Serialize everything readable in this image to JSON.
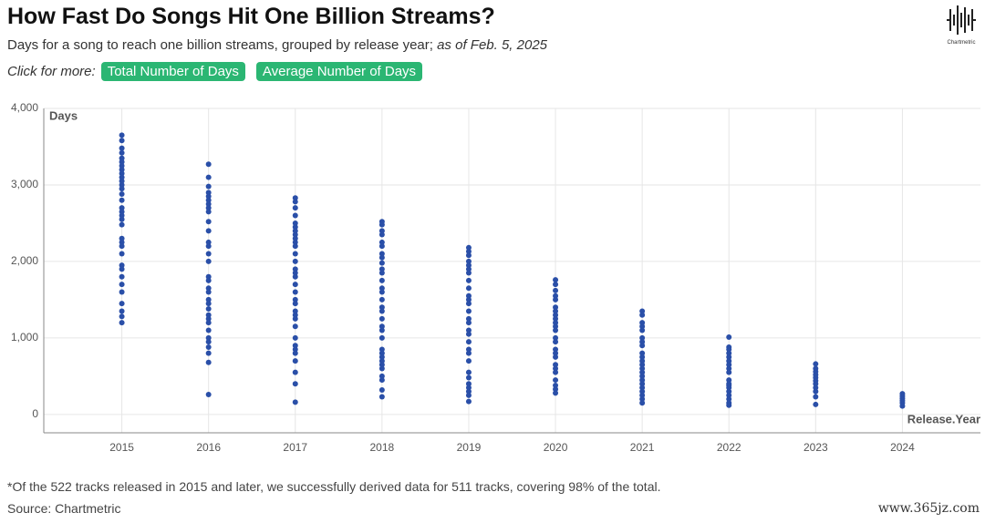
{
  "header": {
    "title": "How Fast Do Songs Hit One Billion Streams?",
    "subtitle": "Days for a song to reach one billion streams, grouped by release year;",
    "subtitle_note": "as of Feb. 5, 2025",
    "more_label": "Click for more:",
    "buttons": [
      "Total Number of Days",
      "Average Number of Days"
    ],
    "logo": "Chartmetric"
  },
  "chart_data": {
    "type": "scatter",
    "ylabel": "Days",
    "xlabel": "Release.Year",
    "color": "#2a4fa8",
    "grid": true,
    "x": [
      2015,
      2016,
      2017,
      2018,
      2019,
      2020,
      2021,
      2022,
      2023,
      2024
    ],
    "values": [
      [
        3650,
        3580,
        3480,
        3420,
        3350,
        3300,
        3250,
        3200,
        3150,
        3100,
        3050,
        3000,
        2950,
        2880,
        2800,
        2700,
        2650,
        2600,
        2550,
        2480,
        2300,
        2250,
        2200,
        2100,
        1950,
        1900,
        1800,
        1700,
        1600,
        1450,
        1350,
        1280,
        1200
      ],
      [
        3270,
        3100,
        2980,
        2900,
        2850,
        2800,
        2750,
        2700,
        2650,
        2520,
        2400,
        2250,
        2200,
        2100,
        2000,
        1800,
        1750,
        1650,
        1600,
        1500,
        1450,
        1380,
        1300,
        1250,
        1200,
        1100,
        1000,
        950,
        880,
        800,
        680,
        260
      ],
      [
        2830,
        2780,
        2700,
        2600,
        2500,
        2450,
        2400,
        2350,
        2300,
        2250,
        2200,
        2100,
        2000,
        1900,
        1850,
        1800,
        1700,
        1600,
        1500,
        1450,
        1350,
        1300,
        1250,
        1150,
        1000,
        900,
        850,
        800,
        700,
        550,
        400,
        160
      ],
      [
        2520,
        2480,
        2400,
        2350,
        2250,
        2200,
        2100,
        2050,
        1980,
        1900,
        1850,
        1750,
        1650,
        1600,
        1500,
        1400,
        1350,
        1250,
        1150,
        1100,
        1000,
        850,
        800,
        750,
        700,
        650,
        600,
        500,
        450,
        320,
        230
      ],
      [
        2180,
        2130,
        2080,
        2000,
        1950,
        1900,
        1850,
        1750,
        1650,
        1550,
        1500,
        1450,
        1350,
        1250,
        1200,
        1100,
        1050,
        950,
        850,
        800,
        700,
        550,
        480,
        400,
        350,
        300,
        250,
        170
      ],
      [
        1760,
        1700,
        1620,
        1550,
        1500,
        1400,
        1350,
        1300,
        1250,
        1200,
        1150,
        1100,
        1000,
        950,
        850,
        800,
        750,
        650,
        600,
        550,
        450,
        380,
        330,
        280
      ],
      [
        1350,
        1300,
        1200,
        1150,
        1100,
        1000,
        950,
        900,
        800,
        750,
        700,
        650,
        600,
        550,
        500,
        450,
        400,
        350,
        300,
        250,
        200,
        150
      ],
      [
        1010,
        880,
        850,
        800,
        750,
        700,
        650,
        600,
        550,
        450,
        400,
        380,
        350,
        300,
        250,
        200,
        150,
        120
      ],
      [
        660,
        600,
        560,
        520,
        480,
        440,
        400,
        350,
        300,
        230,
        130
      ],
      [
        270,
        240,
        210,
        180,
        150,
        110
      ]
    ],
    "xlim": [
      2014.1,
      2024.9
    ],
    "ylim": [
      -240,
      4000
    ],
    "xticks": [
      2015,
      2016,
      2017,
      2018,
      2019,
      2020,
      2021,
      2022,
      2023,
      2024
    ],
    "yticks": [
      0,
      {
        "value": 1000,
        "label": "1,000"
      },
      {
        "value": 2000,
        "label": "2,000"
      },
      {
        "value": 3000,
        "label": "3,000"
      },
      {
        "value": 4000,
        "label": "4,000"
      }
    ]
  },
  "footer": {
    "note": "*Of the 522 tracks released in 2015 and later, we successfully derived data for 511 tracks, covering 98% of the total.",
    "source": "Source: Chartmetric",
    "watermark": "www.365jz.com"
  }
}
